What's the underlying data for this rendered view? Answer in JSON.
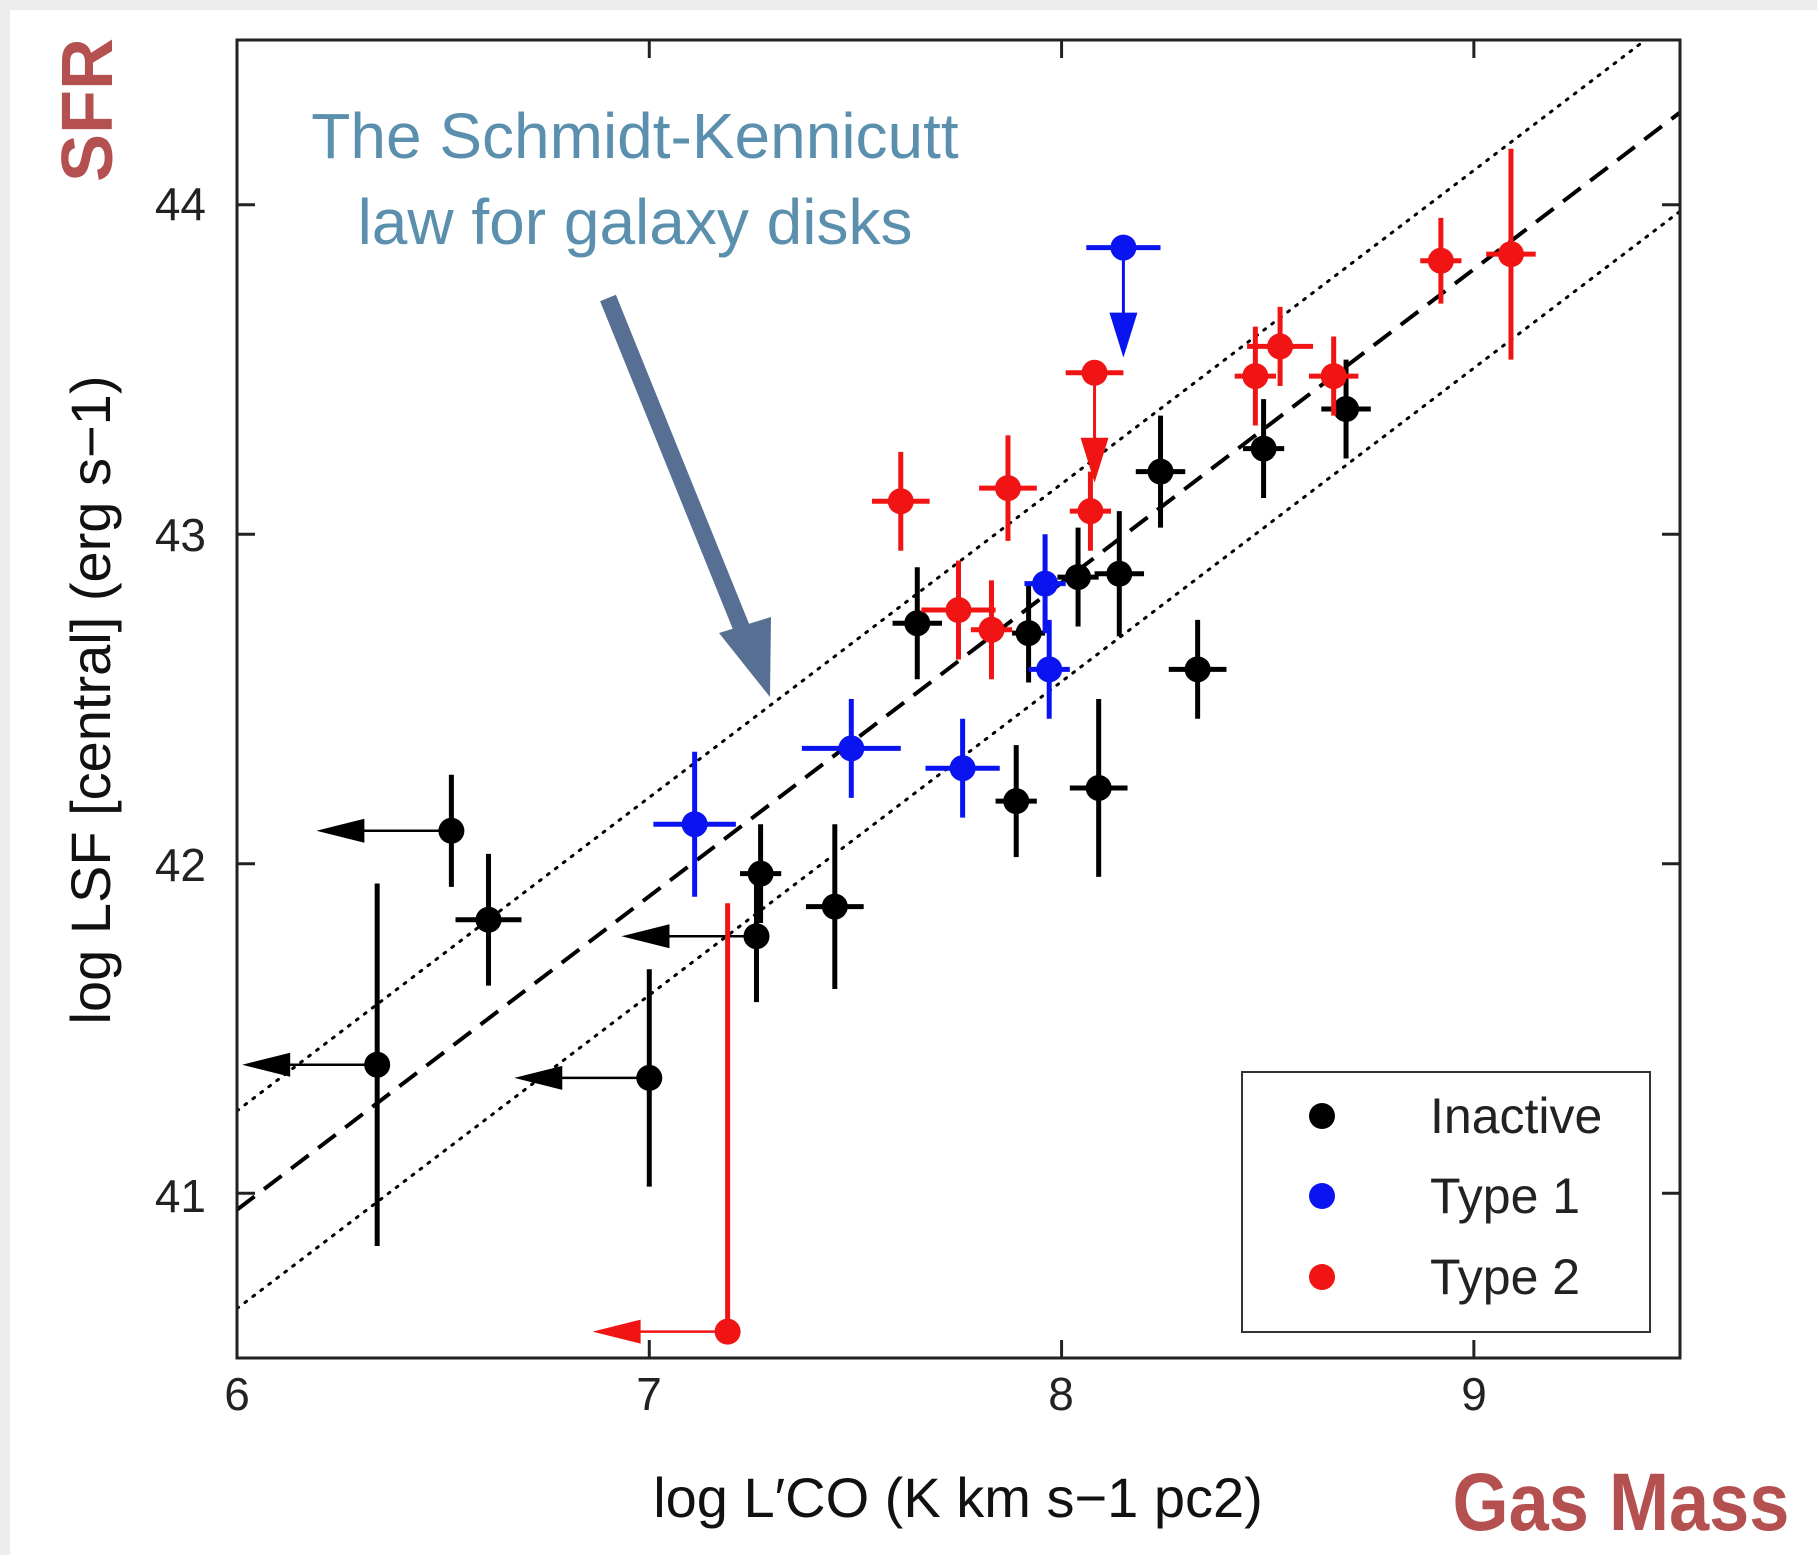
{
  "colors": {
    "Inactive": "#000000",
    "Type 1": "#0a14f0",
    "Type 2": "#f01414",
    "annotation": "#5b8fae",
    "arrow": "#566f92",
    "tag": "#b55050"
  },
  "labels": {
    "x_axis": "log L′CO (K km s−1 pc2)",
    "y_axis": "log LSF [central] (erg s−1)",
    "annotation_line1": "The Schmidt-Kennicutt",
    "annotation_line2": "law for galaxy disks",
    "tag_y": "SFR",
    "tag_x": "Gas Mass"
  },
  "chart_data": {
    "type": "scatter",
    "xlim": [
      6.0,
      9.5
    ],
    "ylim": [
      40.5,
      44.5
    ],
    "xticks": [
      "6",
      "7",
      "8",
      "9"
    ],
    "yticks": [
      "41",
      "42",
      "43",
      "44"
    ],
    "legend_position": "bottom-right",
    "legend": [
      "Inactive",
      "Type 1",
      "Type 2"
    ],
    "lines": [
      {
        "style": "dashed",
        "x": [
          6.0,
          9.5
        ],
        "y": [
          40.95,
          44.28
        ]
      },
      {
        "style": "dotted",
        "x": [
          6.0,
          9.5
        ],
        "y": [
          41.25,
          44.58
        ]
      },
      {
        "style": "dotted",
        "x": [
          6.0,
          9.5
        ],
        "y": [
          40.65,
          43.98
        ]
      }
    ],
    "series": [
      {
        "name": "Inactive",
        "points": [
          {
            "x": 6.52,
            "y": 42.1,
            "xerr": 0,
            "yerr": 0.17,
            "xlim": true
          },
          {
            "x": 6.61,
            "y": 41.83,
            "xerr": 0.08,
            "yerr": 0.2
          },
          {
            "x": 6.34,
            "y": 41.39,
            "xerr": 0,
            "yerr": 0.55,
            "xlim": true
          },
          {
            "x": 7.0,
            "y": 41.35,
            "xerr": 0,
            "yerr": 0.33,
            "xlim": true
          },
          {
            "x": 7.27,
            "y": 41.97,
            "xerr": 0.05,
            "yerr": 0.15
          },
          {
            "x": 7.26,
            "y": 41.78,
            "xerr": 0,
            "yerr": 0.2,
            "xlim": true
          },
          {
            "x": 7.45,
            "y": 41.87,
            "xerr": 0.07,
            "yerr": 0.25
          },
          {
            "x": 7.65,
            "y": 42.73,
            "xerr": 0.06,
            "yerr": 0.17
          },
          {
            "x": 7.89,
            "y": 42.19,
            "xerr": 0.05,
            "yerr": 0.17
          },
          {
            "x": 7.92,
            "y": 42.7,
            "xerr": 0.04,
            "yerr": 0.15
          },
          {
            "x": 8.04,
            "y": 42.87,
            "xerr": 0.05,
            "yerr": 0.15
          },
          {
            "x": 8.14,
            "y": 42.88,
            "xerr": 0.06,
            "yerr": 0.19
          },
          {
            "x": 8.09,
            "y": 42.23,
            "xerr": 0.07,
            "yerr": 0.27
          },
          {
            "x": 8.24,
            "y": 43.19,
            "xerr": 0.06,
            "yerr": 0.17
          },
          {
            "x": 8.33,
            "y": 42.59,
            "xerr": 0.07,
            "yerr": 0.15
          },
          {
            "x": 8.49,
            "y": 43.26,
            "xerr": 0.05,
            "yerr": 0.15
          },
          {
            "x": 8.69,
            "y": 43.38,
            "xerr": 0.06,
            "yerr": 0.15
          }
        ]
      },
      {
        "name": "Type 1",
        "points": [
          {
            "x": 7.11,
            "y": 42.12,
            "xerr": 0.1,
            "yerr": 0.22
          },
          {
            "x": 7.49,
            "y": 42.35,
            "xerr": 0.12,
            "yerr": 0.15
          },
          {
            "x": 7.76,
            "y": 42.29,
            "xerr": 0.09,
            "yerr": 0.15
          },
          {
            "x": 7.96,
            "y": 42.85,
            "xerr": 0.05,
            "yerr": 0.15
          },
          {
            "x": 7.97,
            "y": 42.59,
            "xerr": 0.05,
            "yerr": 0.15
          },
          {
            "x": 8.15,
            "y": 43.87,
            "xerr": 0.09,
            "yerr": 0,
            "ylim": true
          }
        ]
      },
      {
        "name": "Type 2",
        "points": [
          {
            "x": 7.19,
            "y": 40.58,
            "xerr": 0,
            "yerr": 1.3,
            "xlim": true,
            "yerr_up_only": true
          },
          {
            "x": 7.61,
            "y": 43.1,
            "xerr": 0.07,
            "yerr": 0.15
          },
          {
            "x": 7.75,
            "y": 42.77,
            "xerr": 0.09,
            "yerr": 0.15
          },
          {
            "x": 7.83,
            "y": 42.71,
            "xerr": 0.05,
            "yerr": 0.15
          },
          {
            "x": 7.87,
            "y": 43.14,
            "xerr": 0.07,
            "yerr": 0.16
          },
          {
            "x": 8.07,
            "y": 43.07,
            "xerr": 0.05,
            "yerr": 0.12
          },
          {
            "x": 8.08,
            "y": 43.49,
            "xerr": 0.07,
            "yerr": 0,
            "ylim": true
          },
          {
            "x": 8.47,
            "y": 43.48,
            "xerr": 0.05,
            "yerr": 0.15
          },
          {
            "x": 8.53,
            "y": 43.57,
            "xerr": 0.08,
            "yerr": 0.12
          },
          {
            "x": 8.66,
            "y": 43.48,
            "xerr": 0.06,
            "yerr": 0.12
          },
          {
            "x": 8.92,
            "y": 43.83,
            "xerr": 0.05,
            "yerr": 0.13
          },
          {
            "x": 9.09,
            "y": 43.85,
            "xerr": 0.06,
            "yerr": 0.32
          }
        ]
      }
    ]
  }
}
